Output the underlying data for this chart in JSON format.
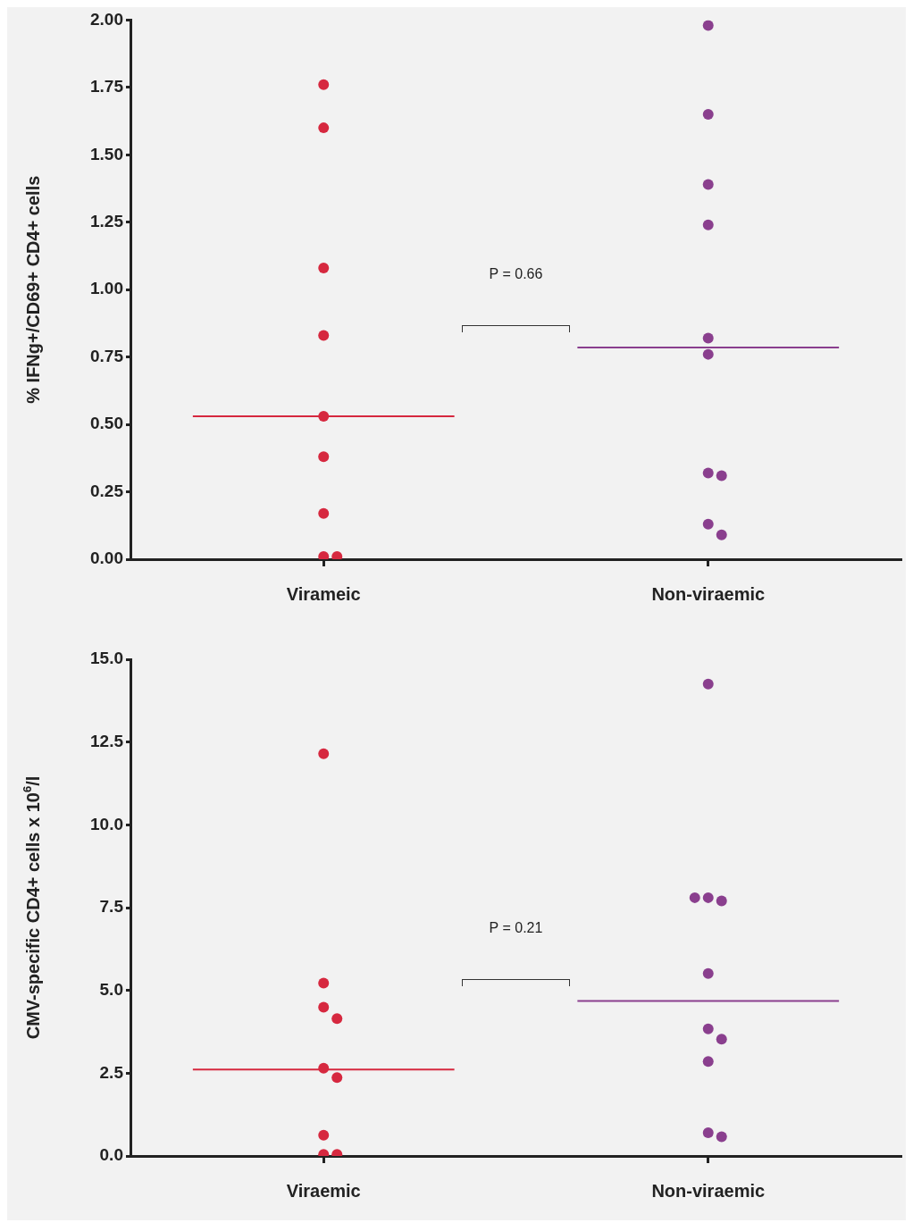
{
  "chart_data": [
    {
      "type": "scatter",
      "ylabel": "% IFNg+/CD69+ CD4+ cells",
      "categories": [
        "Virameic",
        "Non-viraemic"
      ],
      "ylim": [
        0,
        2
      ],
      "yticks": [
        {
          "value": 0,
          "label": "0.00"
        },
        {
          "value": 0.25,
          "label": "0.25"
        },
        {
          "value": 0.5,
          "label": "0.50"
        },
        {
          "value": 0.75,
          "label": "0.75"
        },
        {
          "value": 1,
          "label": "1.00"
        },
        {
          "value": 1.25,
          "label": "1.25"
        },
        {
          "value": 1.5,
          "label": "1.50"
        },
        {
          "value": 1.75,
          "label": "1.75"
        },
        {
          "value": 2,
          "label": "2.00"
        }
      ],
      "marker": "circle",
      "annotations": [
        "P = 0.66"
      ],
      "series": [
        {
          "color": "#d6283f",
          "x": [
            "Virameic",
            "Virameic",
            "Virameic",
            "Virameic",
            "Virameic",
            "Virameic",
            "Virameic",
            "Virameic",
            "Virameic"
          ],
          "values": [
            1.76,
            1.6,
            1.08,
            0.83,
            0.53,
            0.38,
            0.17,
            0.01,
            0.01
          ]
        },
        {
          "color": "#8a3f8e",
          "x": [
            "Non-viraemic",
            "Non-viraemic",
            "Non-viraemic",
            "Non-viraemic",
            "Non-viraemic",
            "Non-viraemic",
            "Non-viraemic",
            "Non-viraemic",
            "Non-viraemic",
            "Non-viraemic"
          ],
          "values": [
            1.98,
            1.65,
            1.39,
            1.24,
            0.82,
            0.76,
            0.32,
            0.31,
            0.13,
            0.09
          ]
        }
      ],
      "ref_lines": [
        {
          "axis": "y",
          "value": 0.53,
          "color": "#d6283f"
        },
        {
          "axis": "y",
          "value": 0.785,
          "color": "#8a3f8e"
        }
      ]
    },
    {
      "type": "scatter",
      "ylabel": "CMV-specific CD4+ cells x 10$^{6}$/l",
      "categories": [
        "Viraemic",
        "Non-viraemic"
      ],
      "ylim": [
        0,
        15
      ],
      "yticks": [
        {
          "value": 0,
          "label": "0.0"
        },
        {
          "value": 2.5,
          "label": "2.5"
        },
        {
          "value": 5,
          "label": "5.0"
        },
        {
          "value": 7.5,
          "label": "7.5"
        },
        {
          "value": 10,
          "label": "10.0"
        },
        {
          "value": 12.5,
          "label": "12.5"
        },
        {
          "value": 15,
          "label": "15.0"
        }
      ],
      "marker": "circle",
      "annotations": [
        "P = 0.21"
      ],
      "series": [
        {
          "color": "#d6283f",
          "x": [
            "Viraemic",
            "Viraemic",
            "Viraemic",
            "Viraemic",
            "Viraemic",
            "Viraemic",
            "Viraemic",
            "Viraemic",
            "Viraemic"
          ],
          "values": [
            12.15,
            5.22,
            4.49,
            4.15,
            2.65,
            2.37,
            0.63,
            0.05,
            0.05
          ]
        },
        {
          "color": "#8a3f8e",
          "x": [
            "Non-viraemic",
            "Non-viraemic",
            "Non-viraemic",
            "Non-viraemic",
            "Non-viraemic",
            "Non-viraemic",
            "Non-viraemic",
            "Non-viraemic",
            "Non-viraemic",
            "Non-viraemic"
          ],
          "values": [
            14.25,
            7.8,
            7.7,
            7.8,
            5.51,
            3.84,
            3.53,
            2.85,
            0.7,
            0.58
          ]
        }
      ],
      "ref_lines": [
        {
          "axis": "y",
          "value": 2.61,
          "color": "#d6283f"
        },
        {
          "axis": "y",
          "value": 4.68,
          "color": "#8a3f8e"
        }
      ]
    }
  ]
}
